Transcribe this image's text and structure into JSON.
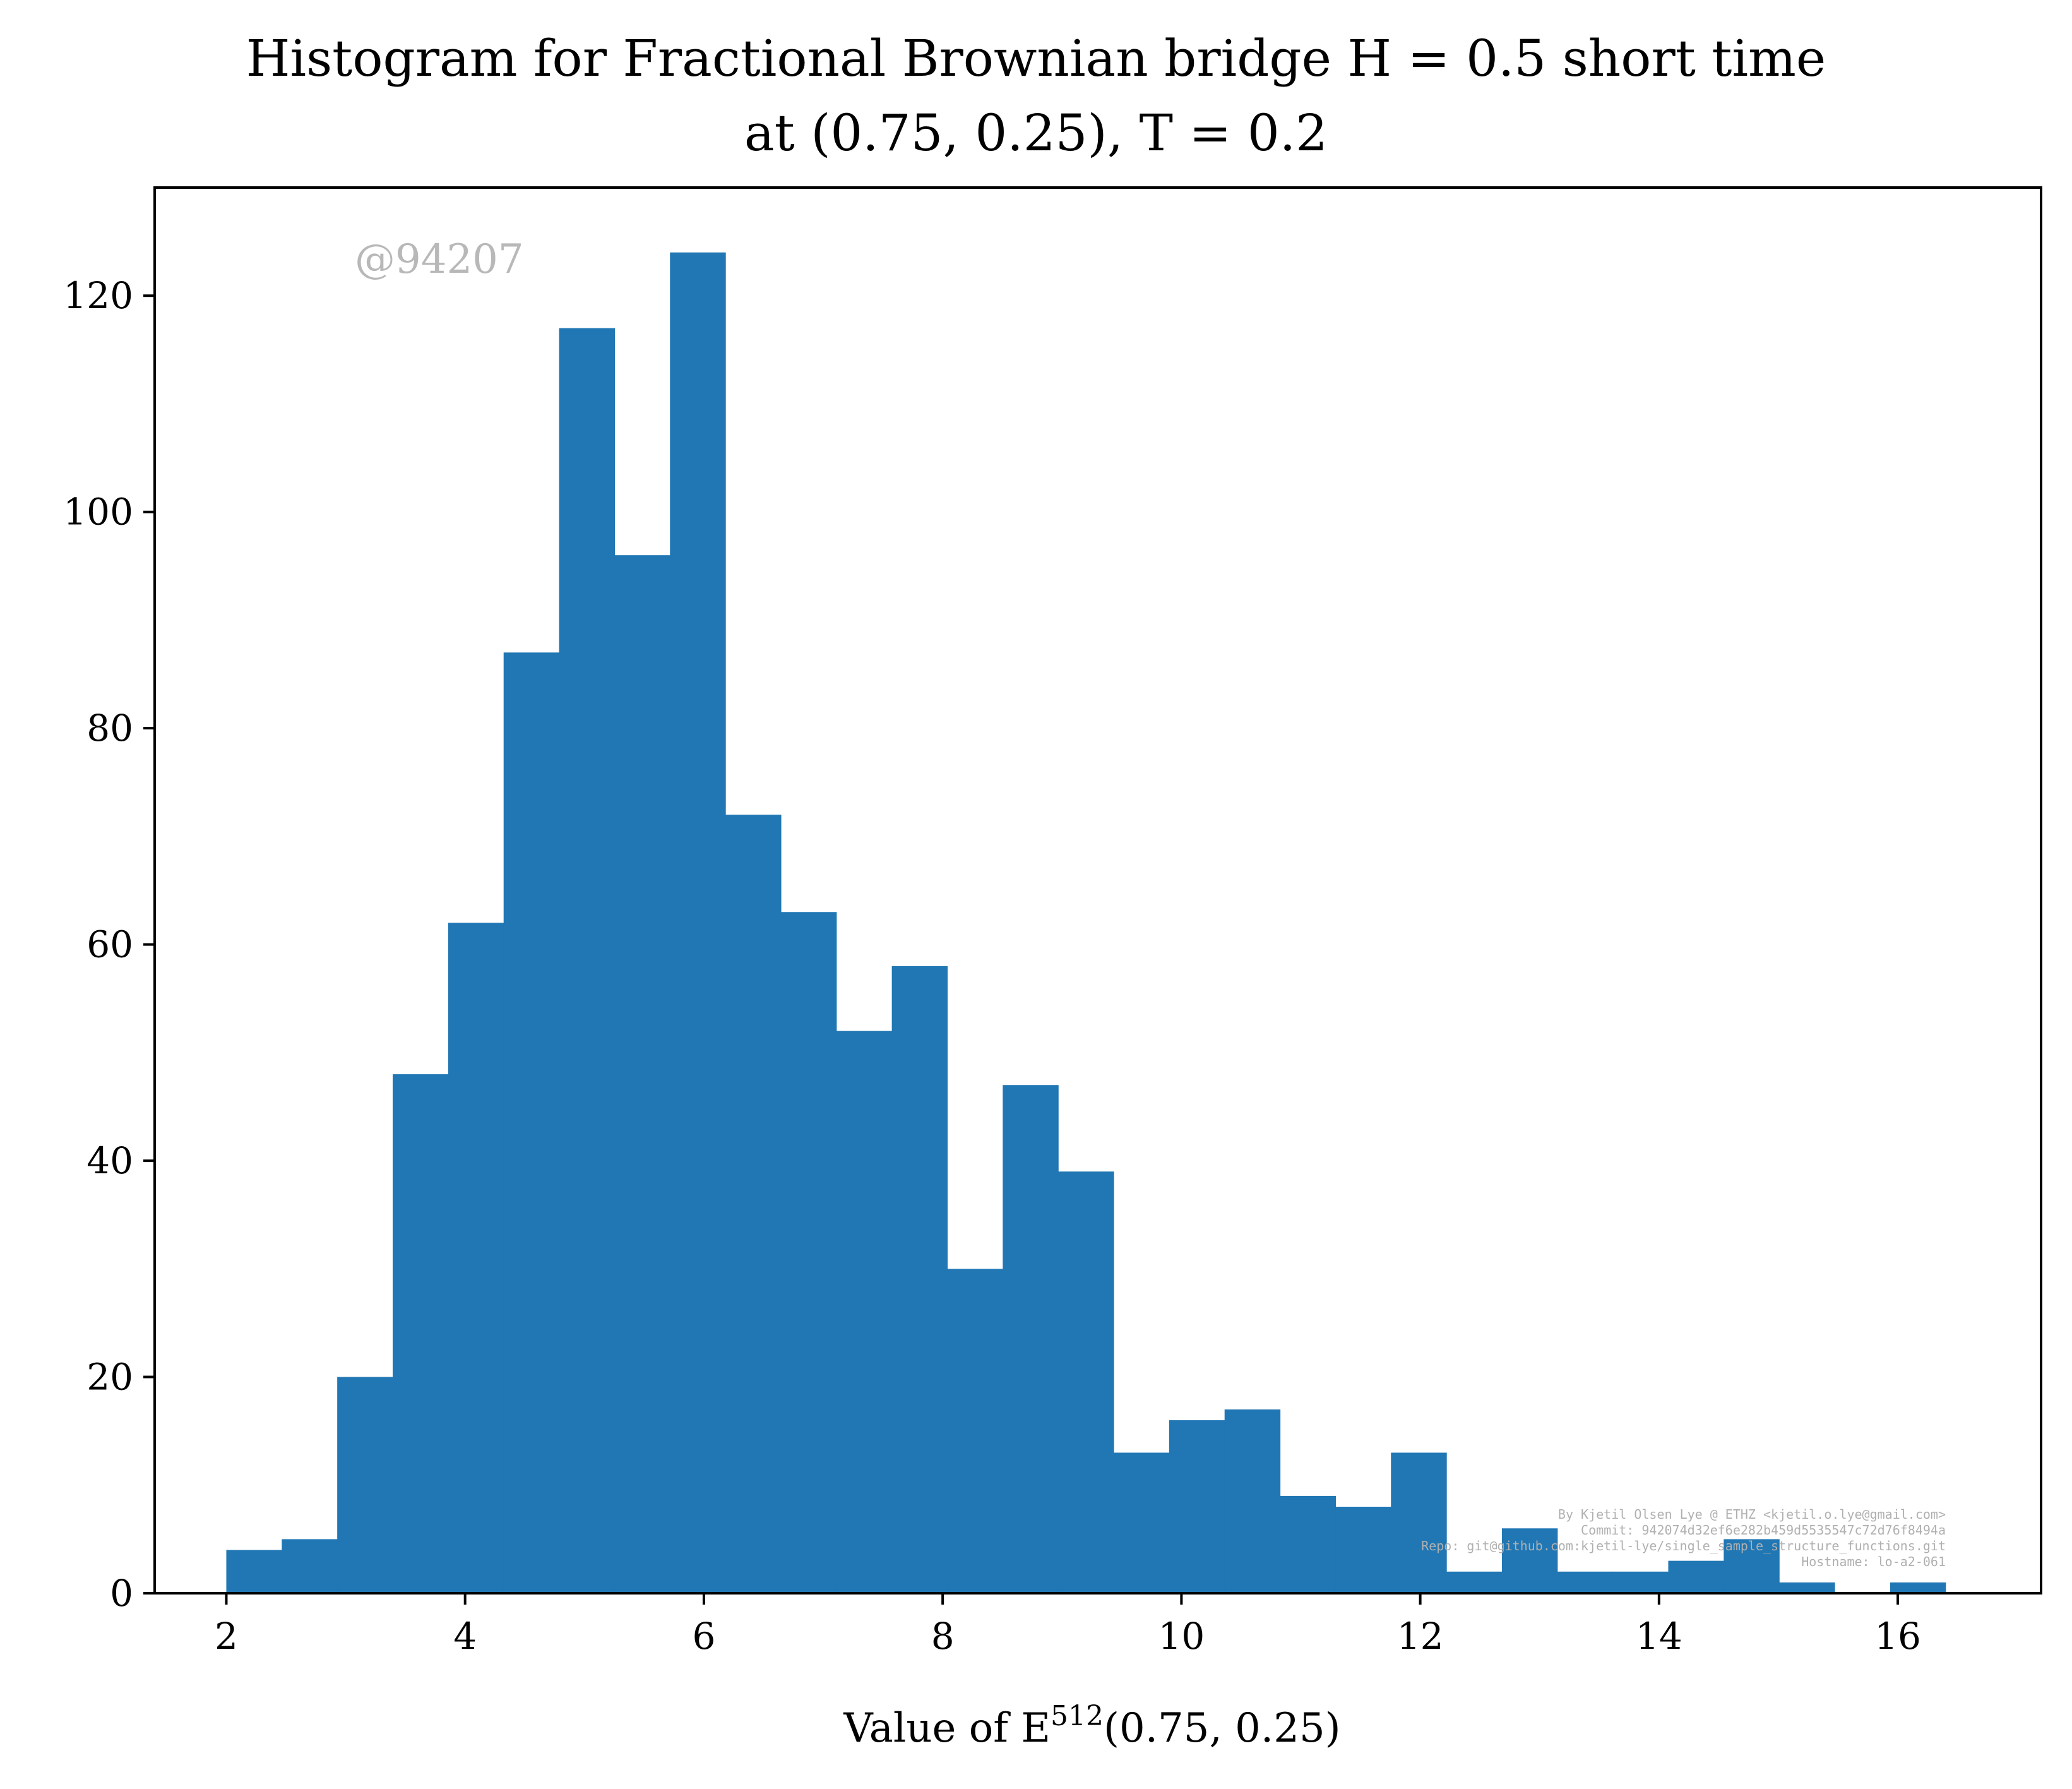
{
  "chart_data": {
    "type": "bar",
    "title_line1": "Histogram for Fractional Brownian bridge H = 0.5 short time",
    "title_line2": "at (0.75, 0.25), T = 0.2",
    "xlabel": "Value of E",
    "xlabel_sup": "512",
    "xlabel_tail": "(0.75, 0.25)",
    "ylabel": "",
    "xlim": [
      1.4,
      17.2
    ],
    "ylim": [
      0,
      130
    ],
    "xticks": [
      2,
      4,
      6,
      8,
      10,
      12,
      14,
      16
    ],
    "yticks": [
      0,
      20,
      40,
      60,
      80,
      100,
      120
    ],
    "bar_color": "#2077b4",
    "bins": {
      "start": 2.0,
      "end": 16.4,
      "count": 32
    },
    "values": [
      4,
      5,
      20,
      48,
      62,
      87,
      117,
      96,
      124,
      72,
      63,
      52,
      58,
      30,
      47,
      39,
      13,
      16,
      17,
      9,
      8,
      13,
      2,
      6,
      2,
      2,
      3,
      5,
      1,
      0,
      1
    ],
    "watermark": "@94207",
    "credits": [
      "By Kjetil Olsen Lye @ ETHZ <kjetil.o.lye@gmail.com>",
      "Commit: 942074d32ef6e282b459d5535547c72d76f8494a",
      "Repo: git@github.com:kjetil-lye/single_sample_structure_functions.git",
      "Hostname: lo-a2-061"
    ]
  }
}
